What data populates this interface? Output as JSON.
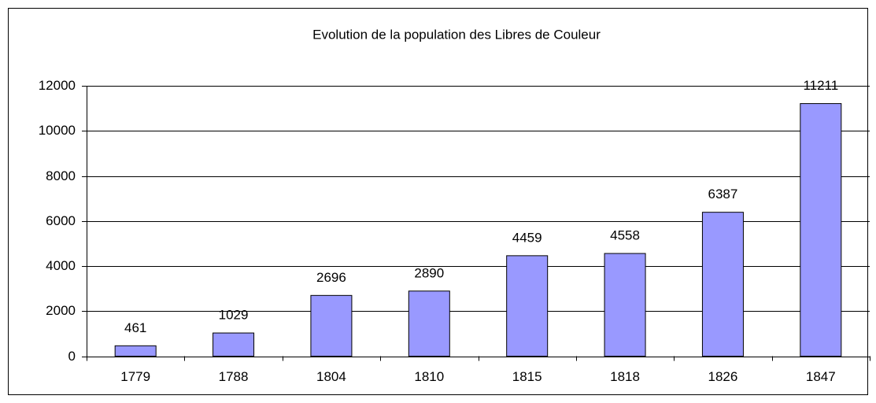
{
  "chart_data": {
    "type": "bar",
    "title": "Evolution de la population des Libres de Couleur",
    "categories": [
      "1779",
      "1788",
      "1804",
      "1810",
      "1815",
      "1818",
      "1826",
      "1847"
    ],
    "values": [
      461,
      1029,
      2696,
      2890,
      4459,
      4558,
      6387,
      11211
    ],
    "color": "#9999ff",
    "ylim": [
      0,
      12000
    ],
    "yticks": [
      0,
      2000,
      4000,
      6000,
      8000,
      10000,
      12000
    ],
    "grid": true
  }
}
